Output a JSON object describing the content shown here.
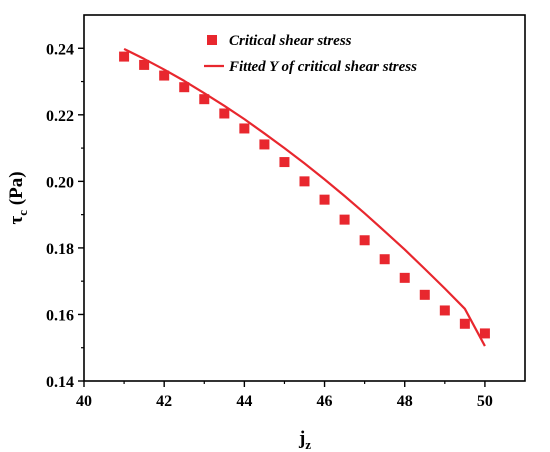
{
  "chart_data": {
    "type": "scatter",
    "xlabel": "j",
    "xlabel_sub": "z",
    "ylabel_symbol": "τ",
    "ylabel_sub": "c",
    "ylabel_unit": " (Pa)",
    "xlim": [
      40,
      51
    ],
    "ylim": [
      0.14,
      0.25
    ],
    "x_ticks": [
      40,
      42,
      44,
      46,
      48,
      50
    ],
    "y_ticks": [
      0.14,
      0.16,
      0.18,
      0.2,
      0.22,
      0.24
    ],
    "x_tick_labels": [
      "40",
      "42",
      "44",
      "46",
      "48",
      "50"
    ],
    "y_tick_labels": [
      "0.14",
      "0.16",
      "0.18",
      "0.20",
      "0.22",
      "0.24"
    ],
    "legend_position": "top",
    "series": [
      {
        "name": "Critical  shear stress",
        "kind": "scatter",
        "color": "#e8272e",
        "x": [
          41,
          41.5,
          42,
          42.5,
          43,
          43.5,
          44,
          44.5,
          45,
          45.5,
          46,
          46.5,
          47,
          47.5,
          48,
          48.5,
          49,
          49.5,
          50
        ],
        "y": [
          0.2375,
          0.235,
          0.2318,
          0.2283,
          0.2247,
          0.2204,
          0.2159,
          0.2111,
          0.2058,
          0.2,
          0.1945,
          0.1885,
          0.1823,
          0.1766,
          0.171,
          0.1659,
          0.1612,
          0.1572,
          0.1543
        ]
      },
      {
        "name": "Fitted Y of critical  shear stress",
        "kind": "line",
        "color": "#e8272e",
        "x": [
          41,
          41.5,
          42,
          42.5,
          43,
          43.5,
          44,
          44.5,
          45,
          45.5,
          46,
          46.5,
          47,
          47.5,
          48,
          48.5,
          49,
          49.5,
          50
        ],
        "y": [
          0.2398,
          0.2368,
          0.2336,
          0.2302,
          0.2265,
          0.2227,
          0.2187,
          0.2144,
          0.21,
          0.2054,
          0.2006,
          0.1956,
          0.1904,
          0.185,
          0.1795,
          0.1737,
          0.1678,
          0.1617,
          0.1505
        ]
      }
    ]
  }
}
